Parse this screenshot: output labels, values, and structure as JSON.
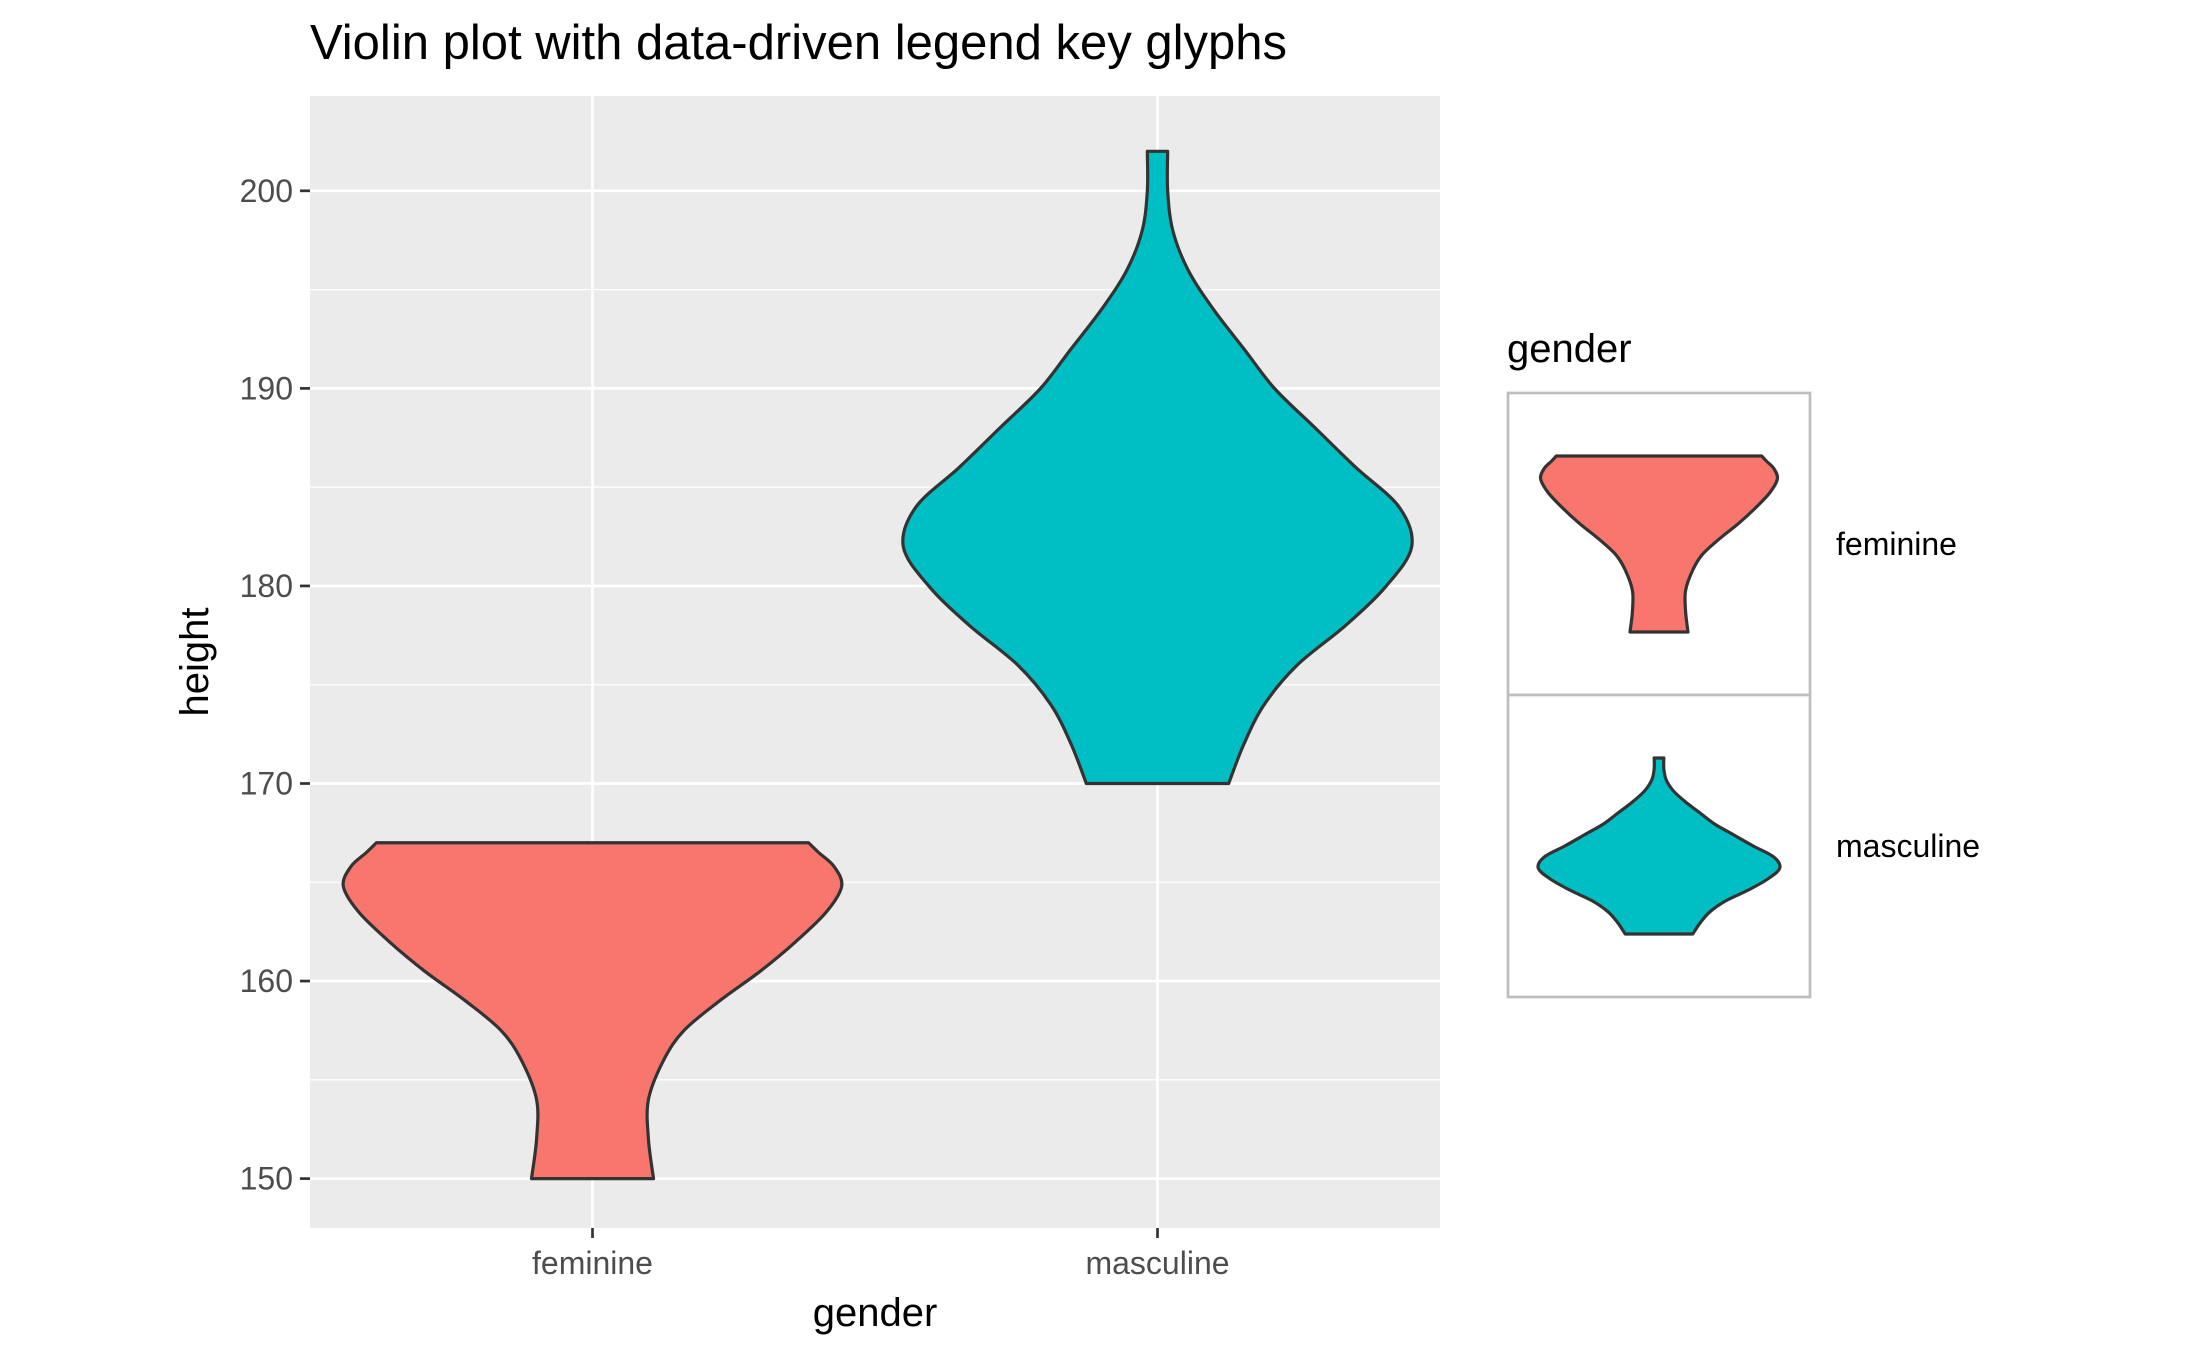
{
  "chart_data": {
    "type": "violin",
    "title": "Violin plot with data-driven legend key glyphs",
    "xlabel": "gender",
    "ylabel": "height",
    "categories": [
      "feminine",
      "masculine"
    ],
    "ylim": [
      147.5,
      204.8
    ],
    "y_ticks": [
      150,
      160,
      170,
      180,
      190,
      200
    ],
    "grid": true,
    "legend_position": "right",
    "legend_title": "gender",
    "series": [
      {
        "name": "feminine",
        "color": "#F8766D",
        "min": 150,
        "max": 167,
        "profile": [
          [
            150.0,
            0.24
          ],
          [
            152.0,
            0.22
          ],
          [
            154.0,
            0.22
          ],
          [
            156.0,
            0.28
          ],
          [
            157.5,
            0.36
          ],
          [
            159.0,
            0.5
          ],
          [
            160.5,
            0.66
          ],
          [
            162.0,
            0.8
          ],
          [
            163.5,
            0.92
          ],
          [
            164.8,
            0.98
          ],
          [
            165.8,
            0.95
          ],
          [
            166.5,
            0.89
          ],
          [
            167.0,
            0.85
          ]
        ]
      },
      {
        "name": "masculine",
        "color": "#00BFC4",
        "min": 170,
        "max": 202,
        "profile": [
          [
            170.0,
            0.28
          ],
          [
            172.0,
            0.34
          ],
          [
            174.0,
            0.42
          ],
          [
            176.0,
            0.55
          ],
          [
            178.0,
            0.74
          ],
          [
            180.0,
            0.9
          ],
          [
            182.0,
            1.0
          ],
          [
            184.0,
            0.95
          ],
          [
            186.0,
            0.78
          ],
          [
            188.0,
            0.62
          ],
          [
            190.0,
            0.46
          ],
          [
            192.0,
            0.34
          ],
          [
            194.0,
            0.22
          ],
          [
            196.0,
            0.12
          ],
          [
            198.0,
            0.06
          ],
          [
            200.0,
            0.04
          ],
          [
            202.0,
            0.04
          ]
        ]
      }
    ]
  }
}
